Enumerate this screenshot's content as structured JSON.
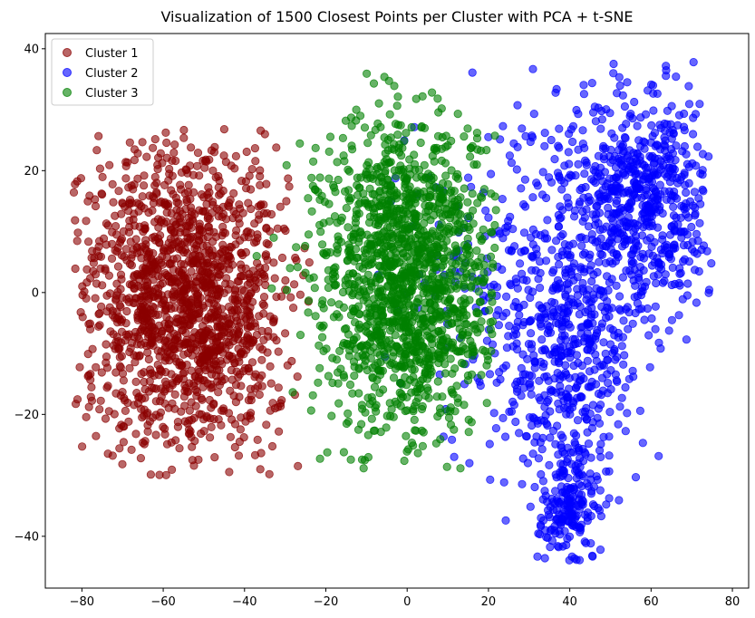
{
  "chart_data": {
    "type": "scatter",
    "title": "Visualization of 1500 Closest Points per Cluster with PCA + t-SNE",
    "xlabel": "",
    "ylabel": "",
    "xlim": [
      -89,
      84
    ],
    "ylim": [
      -48.5,
      42.5
    ],
    "xticks": [
      -80,
      -60,
      -40,
      -20,
      0,
      20,
      40,
      60,
      80
    ],
    "yticks": [
      -40,
      -20,
      0,
      20,
      40
    ],
    "xtick_labels": [
      "−80",
      "−60",
      "−40",
      "−20",
      "0",
      "20",
      "40",
      "60",
      "80"
    ],
    "ytick_labels": [
      "−40",
      "−20",
      "0",
      "20",
      "40"
    ],
    "grid": false,
    "legend_position": "upper-left",
    "points_per_series": 1500,
    "series": [
      {
        "name": "Cluster 1",
        "color": "#8b0000",
        "alpha": 0.6,
        "x_range": [
          -82,
          -24
        ],
        "y_range": [
          -30,
          27
        ],
        "blobs": [
          {
            "cx": -55,
            "cy": -2,
            "sx": 13,
            "sy": 13,
            "weight": 1.0
          }
        ]
      },
      {
        "name": "Cluster 2",
        "color": "#0000ff",
        "alpha": 0.6,
        "x_range": [
          -10,
          75
        ],
        "y_range": [
          -44,
          38
        ],
        "blobs": [
          {
            "cx": 58,
            "cy": 15,
            "sx": 9,
            "sy": 9,
            "weight": 0.42
          },
          {
            "cx": 40,
            "cy": -10,
            "sx": 8,
            "sy": 11,
            "weight": 0.28
          },
          {
            "cx": 40,
            "cy": -35,
            "sx": 4,
            "sy": 5,
            "weight": 0.14
          },
          {
            "cx": 25,
            "cy": 2,
            "sx": 12,
            "sy": 15,
            "weight": 0.16
          }
        ]
      },
      {
        "name": "Cluster 3",
        "color": "#008000",
        "alpha": 0.6,
        "x_range": [
          -45,
          22
        ],
        "y_range": [
          -29,
          36
        ],
        "blobs": [
          {
            "cx": 0,
            "cy": 3,
            "sx": 11,
            "sy": 13,
            "weight": 1.0
          }
        ]
      }
    ]
  }
}
